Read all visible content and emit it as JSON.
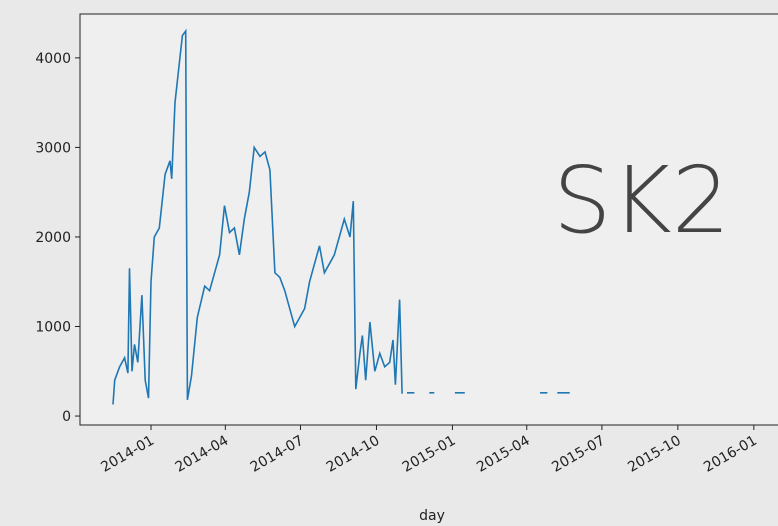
{
  "chart_data": {
    "type": "line",
    "x_label": "day",
    "annotation": "SK2",
    "color": "#1f77b4",
    "x": [
      "2013-11-16",
      "2013-11-18",
      "2013-11-24",
      "2013-11-30",
      "2013-12-04",
      "2013-12-06",
      "2013-12-09",
      "2013-12-12",
      "2013-12-16",
      "2013-12-21",
      "2013-12-25",
      "2013-12-29",
      "2014-01-01",
      "2014-01-05",
      "2014-01-11",
      "2014-01-18",
      "2014-01-24",
      "2014-01-26",
      "2014-01-30",
      "2014-02-05",
      "2014-02-08",
      "2014-02-12",
      "2014-02-14",
      "2014-02-19",
      "2014-02-26",
      "2014-03-07",
      "2014-03-13",
      "2014-03-19",
      "2014-03-25",
      "2014-03-31",
      "2014-04-06",
      "2014-04-12",
      "2014-04-18",
      "2014-04-24",
      "2014-04-30",
      "2014-05-06",
      "2014-05-13",
      "2014-05-19",
      "2014-05-25",
      "2014-05-31",
      "2014-06-06",
      "2014-06-12",
      "2014-06-18",
      "2014-06-24",
      "2014-06-30",
      "2014-07-06",
      "2014-07-12",
      "2014-07-18",
      "2014-07-24",
      "2014-07-30",
      "2014-08-05",
      "2014-08-11",
      "2014-08-17",
      "2014-08-23",
      "2014-08-30",
      "2014-09-03",
      "2014-09-06",
      "2014-09-11",
      "2014-09-14",
      "2014-09-18",
      "2014-09-23",
      "2014-09-29",
      "2014-10-05",
      "2014-10-11",
      "2014-10-17",
      "2014-10-21",
      "2014-10-24",
      "2014-10-29",
      "2014-11-01",
      "2014-11-04",
      "2014-11-07",
      "2014-11-16",
      "2014-11-25",
      "2014-12-04",
      "2014-12-10",
      "2014-12-20",
      "2015-01-04",
      "2015-01-16",
      "2015-03-01",
      "2015-04-17",
      "2015-04-26",
      "2015-05-02",
      "2015-05-08",
      "2015-05-23"
    ],
    "values": [
      130,
      400,
      550,
      650,
      480,
      1650,
      500,
      800,
      600,
      1350,
      400,
      200,
      1500,
      2000,
      2100,
      2700,
      2850,
      2650,
      3500,
      4000,
      4250,
      4300,
      180,
      450,
      1100,
      1450,
      1400,
      1600,
      1800,
      2350,
      2050,
      2100,
      1800,
      2200,
      2500,
      3000,
      2900,
      2950,
      2750,
      1600,
      1550,
      1400,
      1200,
      1000,
      1100,
      1200,
      1500,
      1700,
      1900,
      1600,
      1700,
      1800,
      2000,
      2200,
      2000,
      2400,
      300,
      700,
      900,
      400,
      1050,
      500,
      700,
      550,
      600,
      850,
      350,
      1300,
      250,
      null,
      260,
      260,
      null,
      260,
      260,
      null,
      260,
      260,
      null,
      260,
      260,
      null,
      260,
      260
    ],
    "xlim": [
      "2013-10-07",
      "2016-02-15"
    ],
    "xticks": [
      {
        "value": "2014-01-01",
        "label": "2014-01"
      },
      {
        "value": "2014-04-01",
        "label": "2014-04"
      },
      {
        "value": "2014-07-01",
        "label": "2014-07"
      },
      {
        "value": "2014-10-01",
        "label": "2014-10"
      },
      {
        "value": "2015-01-01",
        "label": "2015-01"
      },
      {
        "value": "2015-04-01",
        "label": "2015-04"
      },
      {
        "value": "2015-07-01",
        "label": "2015-07"
      },
      {
        "value": "2015-10-01",
        "label": "2015-10"
      },
      {
        "value": "2016-01-01",
        "label": "2016-01"
      }
    ],
    "ylim": [
      -100,
      4490
    ],
    "yticks": [
      0,
      1000,
      2000,
      3000,
      4000
    ]
  }
}
